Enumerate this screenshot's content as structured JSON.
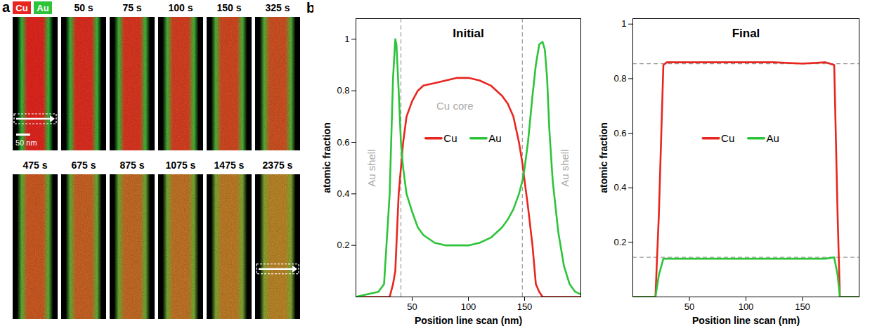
{
  "panel_a": {
    "label": "a",
    "channels": [
      {
        "name": "Cu",
        "color": "#e8261f"
      },
      {
        "name": "Au",
        "color": "#2ec43a"
      }
    ],
    "scale_bar": "50 nm",
    "times": [
      "50 s",
      "75 s",
      "100 s",
      "150 s",
      "325 s",
      "475 s",
      "675 s",
      "875 s",
      "1075 s",
      "1475 s",
      "2375 s"
    ]
  },
  "panel_b": {
    "label": "b"
  },
  "chart_data": [
    {
      "type": "line",
      "title": "Initial",
      "x_label": "Position line scan (nm)",
      "y_label": "atomic fraction",
      "x": [
        0,
        10,
        20,
        25,
        30,
        33,
        35,
        36,
        38,
        40,
        42,
        45,
        50,
        55,
        60,
        70,
        80,
        90,
        100,
        110,
        120,
        130,
        135,
        140,
        145,
        148,
        150,
        153,
        157,
        160,
        163,
        166,
        168,
        170,
        172,
        175,
        180,
        185,
        190,
        195,
        200
      ],
      "series": [
        {
          "name": "Cu",
          "color": "#e8261f",
          "values": [
            0,
            0,
            0,
            0,
            0,
            0.05,
            0.1,
            0.2,
            0.4,
            0.5,
            0.6,
            0.7,
            0.76,
            0.8,
            0.82,
            0.83,
            0.84,
            0.85,
            0.85,
            0.84,
            0.82,
            0.78,
            0.75,
            0.7,
            0.6,
            0.52,
            0.45,
            0.35,
            0.2,
            0.05,
            0.02,
            0,
            0,
            0,
            0,
            0,
            0,
            0,
            0,
            0,
            0
          ]
        },
        {
          "name": "Au",
          "color": "#2ec43a",
          "values": [
            0,
            0.01,
            0.02,
            0.05,
            0.4,
            0.85,
            1.0,
            0.98,
            0.8,
            0.6,
            0.5,
            0.4,
            0.33,
            0.27,
            0.24,
            0.21,
            0.2,
            0.2,
            0.2,
            0.21,
            0.23,
            0.27,
            0.3,
            0.34,
            0.4,
            0.45,
            0.5,
            0.6,
            0.78,
            0.9,
            0.98,
            0.99,
            0.96,
            0.85,
            0.65,
            0.45,
            0.25,
            0.12,
            0.05,
            0.02,
            0.01
          ]
        }
      ],
      "xlim": [
        0,
        200
      ],
      "xticks": [
        50,
        100,
        150
      ],
      "ylim": [
        0,
        1.08
      ],
      "yticks": [
        0.2,
        0.4,
        0.6,
        0.8,
        1
      ],
      "legend": "center",
      "vlines": [
        40,
        148
      ],
      "annotations": [
        {
          "text": "Cu core",
          "x": 88,
          "y": 0.74
        }
      ],
      "vertical_annotations": [
        {
          "text": "Au shell",
          "x": 14,
          "y": 0.5
        },
        {
          "text": "Au shell",
          "x": 186,
          "y": 0.5
        }
      ]
    },
    {
      "type": "line",
      "title": "Final",
      "x_label": "Position line scan (nm)",
      "y_label": "atomic fraction",
      "x": [
        0,
        20,
        23,
        27,
        30,
        50,
        75,
        100,
        125,
        150,
        170,
        178,
        181,
        183,
        200
      ],
      "series": [
        {
          "name": "Cu",
          "color": "#e8261f",
          "values": [
            0,
            0,
            0.3,
            0.85,
            0.86,
            0.86,
            0.86,
            0.86,
            0.86,
            0.855,
            0.86,
            0.85,
            0.3,
            0,
            0
          ]
        },
        {
          "name": "Au",
          "color": "#2ec43a",
          "values": [
            0,
            0,
            0.08,
            0.14,
            0.14,
            0.14,
            0.14,
            0.14,
            0.14,
            0.14,
            0.14,
            0.145,
            0.08,
            0,
            0
          ]
        }
      ],
      "xlim": [
        0,
        200
      ],
      "xticks": [
        50,
        100,
        150
      ],
      "ylim": [
        0,
        1.02
      ],
      "yticks": [
        0.2,
        0.4,
        0.6,
        0.8,
        1
      ],
      "legend": "center",
      "hlines": [
        0.855,
        0.145
      ]
    }
  ]
}
